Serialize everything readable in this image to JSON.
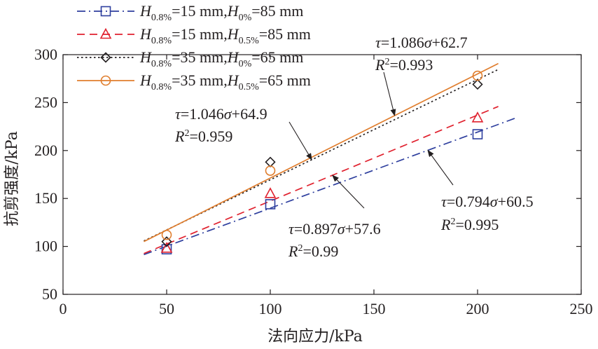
{
  "chart_data": {
    "type": "scatter",
    "title": "",
    "xlabel": "法向应力/kPa",
    "ylabel": "抗剪强度/kPa",
    "xlim": [
      0,
      250
    ],
    "ylim": [
      50,
      300
    ],
    "xticks": [
      0,
      50,
      100,
      150,
      200,
      250
    ],
    "yticks": [
      50,
      100,
      150,
      200,
      250,
      300
    ],
    "grid": false,
    "legend_position": "top-left",
    "series": [
      {
        "key": "s1",
        "legend_parts": [
          "H",
          "0.8%",
          "=15 mm,",
          "H",
          "0%",
          "=85 mm"
        ],
        "color": "#2e3f9e",
        "marker": "square",
        "line_style": "dash-dot",
        "x": [
          50,
          100,
          200
        ],
        "y": [
          97,
          144,
          217
        ],
        "fit": {
          "slope": 0.794,
          "intercept": 60.5,
          "x_range": [
            39,
            218
          ]
        },
        "equation": [
          "τ",
          "=0.794",
          "σ",
          "+60.5"
        ],
        "r2": [
          "R",
          "2",
          "=0.995"
        ]
      },
      {
        "key": "s2",
        "legend_parts": [
          "H",
          "0.8%",
          "=15 mm,",
          "H",
          "0.5%",
          "=85 mm"
        ],
        "color": "#e0212e",
        "marker": "triangle",
        "line_style": "dashed",
        "x": [
          50,
          100,
          200
        ],
        "y": [
          98,
          155,
          234
        ],
        "fit": {
          "slope": 0.897,
          "intercept": 57.6,
          "x_range": [
            39,
            210
          ]
        },
        "equation": [
          "τ",
          "=0.897",
          "σ",
          "+57.6"
        ],
        "r2": [
          "R",
          "2",
          "=0.99"
        ]
      },
      {
        "key": "s3",
        "legend_parts": [
          "H",
          "0.8%",
          "=35 mm,",
          "H",
          "0%",
          "=65 mm"
        ],
        "color": "#231f20",
        "marker": "diamond",
        "line_style": "dotted",
        "x": [
          50,
          100,
          200
        ],
        "y": [
          105,
          188,
          269
        ],
        "fit": {
          "slope": 1.046,
          "intercept": 64.9,
          "x_range": [
            39,
            210
          ]
        },
        "equation": [
          "τ",
          "=1.046",
          "σ",
          "+64.9"
        ],
        "r2": [
          "R",
          "2",
          "=0.959"
        ]
      },
      {
        "key": "s4",
        "legend_parts": [
          "H",
          "0.8%",
          "=35 mm,",
          "H",
          "0.5%",
          "=65 mm"
        ],
        "color": "#e07e2e",
        "marker": "circle",
        "line_style": "solid",
        "x": [
          50,
          100,
          200
        ],
        "y": [
          112,
          179,
          278
        ],
        "fit": {
          "slope": 1.086,
          "intercept": 62.7,
          "x_range": [
            39,
            210
          ]
        },
        "equation": [
          "τ",
          "=1.086",
          "σ",
          "+62.7"
        ],
        "r2": [
          "R",
          "2",
          "=0.993"
        ]
      }
    ]
  }
}
